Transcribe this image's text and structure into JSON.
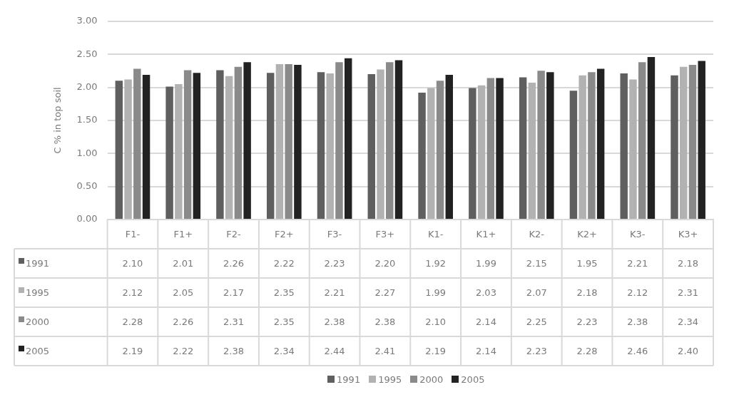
{
  "chart_data": {
    "type": "bar",
    "ylabel": "C % in top soil",
    "categories": [
      "F1-",
      "F1+",
      "F2-",
      "F2+",
      "F3-",
      "F3+",
      "K1-",
      "K1+",
      "K2-",
      "K2+",
      "K3-",
      "K3+"
    ],
    "series": [
      {
        "name": "1991",
        "color": "#5f5f5f",
        "values": [
          2.1,
          2.01,
          2.26,
          2.22,
          2.23,
          2.2,
          1.92,
          1.99,
          2.15,
          1.95,
          2.21,
          2.18
        ],
        "value_labels": [
          "2.10",
          "2.01",
          "2.26",
          "2.22",
          "2.23",
          "2.20",
          "1.92",
          "1.99",
          "2.15",
          "1.95",
          "2.21",
          "2.18"
        ]
      },
      {
        "name": "1995",
        "color": "#b2b2b2",
        "values": [
          2.12,
          2.05,
          2.17,
          2.35,
          2.21,
          2.27,
          1.99,
          2.03,
          2.07,
          2.18,
          2.12,
          2.31
        ],
        "value_labels": [
          "2.12",
          "2.05",
          "2.17",
          "2.35",
          "2.21",
          "2.27",
          "1.99",
          "2.03",
          "2.07",
          "2.18",
          "2.12",
          "2.31"
        ]
      },
      {
        "name": "2000",
        "color": "#8a8a8a",
        "values": [
          2.28,
          2.26,
          2.31,
          2.35,
          2.38,
          2.38,
          2.1,
          2.14,
          2.25,
          2.23,
          2.38,
          2.34
        ],
        "value_labels": [
          "2.28",
          "2.26",
          "2.31",
          "2.35",
          "2.38",
          "2.38",
          "2.10",
          "2.14",
          "2.25",
          "2.23",
          "2.38",
          "2.34"
        ]
      },
      {
        "name": "2005",
        "color": "#222222",
        "values": [
          2.19,
          2.22,
          2.38,
          2.34,
          2.44,
          2.41,
          2.19,
          2.14,
          2.23,
          2.28,
          2.46,
          2.4
        ],
        "value_labels": [
          "2.19",
          "2.22",
          "2.38",
          "2.34",
          "2.44",
          "2.41",
          "2.19",
          "2.14",
          "2.23",
          "2.28",
          "2.46",
          "2.40"
        ]
      }
    ],
    "ylim": [
      0,
      3
    ],
    "yticks": [
      {
        "value": 0,
        "label": "0.00"
      },
      {
        "value": 0.5,
        "label": "0.50"
      },
      {
        "value": 1,
        "label": "1.00"
      },
      {
        "value": 1.5,
        "label": "1.50"
      },
      {
        "value": 2,
        "label": "2.00"
      },
      {
        "value": 2.5,
        "label": "2.50"
      },
      {
        "value": 3,
        "label": "3.00"
      }
    ],
    "grid": "y",
    "legend": "bottom"
  }
}
